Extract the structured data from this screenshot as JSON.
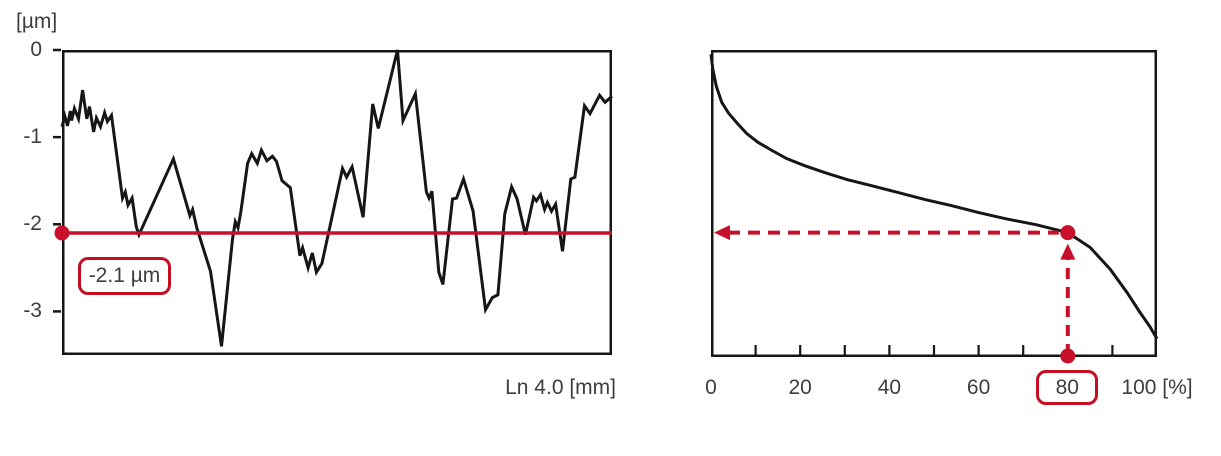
{
  "figure": {
    "background": "#ffffff",
    "accent_red": "#c8102a",
    "line_black": "#161616",
    "text_color": "#3d3d42"
  },
  "chart_data": [
    {
      "id": "profile",
      "type": "line",
      "y_unit": "[µm]",
      "x_label": "Ln 4.0 [mm]",
      "xlim": [
        0,
        4.0
      ],
      "ylim": [
        -3.5,
        0
      ],
      "grid": false,
      "yticks": [
        {
          "value": 0,
          "label": "0"
        },
        {
          "value": -1,
          "label": "-1"
        },
        {
          "value": -2,
          "label": "-2"
        },
        {
          "value": -3,
          "label": "-3"
        }
      ],
      "series": [
        {
          "name": "roughness-profile",
          "color": "#161616",
          "points": [
            [
              0.0,
              -0.88
            ],
            [
              0.02,
              -0.76
            ],
            [
              0.04,
              -0.87
            ],
            [
              0.06,
              -0.7
            ],
            [
              0.07,
              -0.81
            ],
            [
              0.09,
              -0.67
            ],
            [
              0.12,
              -0.79
            ],
            [
              0.15,
              -0.46
            ],
            [
              0.18,
              -0.79
            ],
            [
              0.2,
              -0.65
            ],
            [
              0.23,
              -0.94
            ],
            [
              0.25,
              -0.78
            ],
            [
              0.28,
              -0.88
            ],
            [
              0.31,
              -0.72
            ],
            [
              0.33,
              -0.82
            ],
            [
              0.36,
              -0.75
            ],
            [
              0.44,
              -1.7
            ],
            [
              0.46,
              -1.63
            ],
            [
              0.48,
              -1.78
            ],
            [
              0.51,
              -1.7
            ],
            [
              0.54,
              -2.03
            ],
            [
              0.56,
              -2.12
            ],
            [
              0.81,
              -1.25
            ],
            [
              0.93,
              -1.9
            ],
            [
              0.95,
              -1.83
            ],
            [
              0.98,
              -2.04
            ],
            [
              1.08,
              -2.54
            ],
            [
              1.16,
              -3.4
            ],
            [
              1.24,
              -2.17
            ],
            [
              1.26,
              -1.97
            ],
            [
              1.28,
              -2.04
            ],
            [
              1.3,
              -1.86
            ],
            [
              1.35,
              -1.3
            ],
            [
              1.38,
              -1.19
            ],
            [
              1.42,
              -1.3
            ],
            [
              1.45,
              -1.15
            ],
            [
              1.49,
              -1.27
            ],
            [
              1.53,
              -1.22
            ],
            [
              1.56,
              -1.28
            ],
            [
              1.6,
              -1.5
            ],
            [
              1.66,
              -1.58
            ],
            [
              1.73,
              -2.36
            ],
            [
              1.75,
              -2.27
            ],
            [
              1.79,
              -2.5
            ],
            [
              1.82,
              -2.33
            ],
            [
              1.85,
              -2.55
            ],
            [
              1.89,
              -2.45
            ],
            [
              2.04,
              -1.36
            ],
            [
              2.07,
              -1.46
            ],
            [
              2.11,
              -1.34
            ],
            [
              2.19,
              -1.92
            ],
            [
              2.26,
              -0.62
            ],
            [
              2.3,
              -0.9
            ],
            [
              2.44,
              0.0
            ],
            [
              2.48,
              -0.81
            ],
            [
              2.57,
              -0.5
            ],
            [
              2.65,
              -1.63
            ],
            [
              2.67,
              -1.7
            ],
            [
              2.69,
              -1.62
            ],
            [
              2.74,
              -2.55
            ],
            [
              2.77,
              -2.69
            ],
            [
              2.84,
              -1.71
            ],
            [
              2.87,
              -1.7
            ],
            [
              2.92,
              -1.48
            ],
            [
              2.99,
              -1.85
            ],
            [
              3.08,
              -2.98
            ],
            [
              3.13,
              -2.84
            ],
            [
              3.17,
              -2.81
            ],
            [
              3.22,
              -1.88
            ],
            [
              3.27,
              -1.57
            ],
            [
              3.31,
              -1.71
            ],
            [
              3.37,
              -2.12
            ],
            [
              3.43,
              -1.69
            ],
            [
              3.45,
              -1.73
            ],
            [
              3.48,
              -1.66
            ],
            [
              3.51,
              -1.83
            ],
            [
              3.53,
              -1.75
            ],
            [
              3.56,
              -1.85
            ],
            [
              3.59,
              -1.77
            ],
            [
              3.64,
              -2.31
            ],
            [
              3.7,
              -1.48
            ],
            [
              3.73,
              -1.46
            ],
            [
              3.8,
              -0.64
            ],
            [
              3.84,
              -0.73
            ],
            [
              3.91,
              -0.52
            ],
            [
              3.95,
              -0.6
            ],
            [
              4.0,
              -0.53
            ]
          ]
        }
      ],
      "annotations": {
        "hline": {
          "y": -2.1,
          "color": "#c8102a",
          "label": "-2.1 µm",
          "dot_at_axis": true
        }
      }
    },
    {
      "id": "material-ratio",
      "type": "line",
      "xlim": [
        0,
        100
      ],
      "ylim": [
        -3.53,
        0
      ],
      "grid": false,
      "xtick_minor_step": 10,
      "xticks": [
        {
          "value": 0,
          "label": "0"
        },
        {
          "value": 20,
          "label": "20"
        },
        {
          "value": 40,
          "label": "40"
        },
        {
          "value": 60,
          "label": "60"
        },
        {
          "value": 80,
          "label": "80",
          "boxed": true
        },
        {
          "value": 100,
          "label": "100 [%]"
        }
      ],
      "series": [
        {
          "name": "material-ratio-curve",
          "color": "#161616",
          "points": [
            [
              0,
              -0.05
            ],
            [
              0.4,
              -0.22
            ],
            [
              1.2,
              -0.42
            ],
            [
              2.4,
              -0.6
            ],
            [
              4,
              -0.73
            ],
            [
              6,
              -0.85
            ],
            [
              8,
              -0.96
            ],
            [
              10.5,
              -1.06
            ],
            [
              13.5,
              -1.15
            ],
            [
              17,
              -1.25
            ],
            [
              21,
              -1.33
            ],
            [
              25.5,
              -1.41
            ],
            [
              30.5,
              -1.49
            ],
            [
              36,
              -1.56
            ],
            [
              42,
              -1.64
            ],
            [
              48,
              -1.72
            ],
            [
              54,
              -1.79
            ],
            [
              60,
              -1.87
            ],
            [
              66,
              -1.94
            ],
            [
              73,
              -2.01
            ],
            [
              80,
              -2.1
            ],
            [
              85,
              -2.27
            ],
            [
              89.5,
              -2.52
            ],
            [
              93.3,
              -2.79
            ],
            [
              96.2,
              -3.02
            ],
            [
              98.4,
              -3.18
            ],
            [
              100,
              -3.32
            ]
          ]
        }
      ],
      "annotations": {
        "intersect": {
          "x": 80,
          "y": -2.1,
          "color": "#c8102a"
        }
      }
    }
  ]
}
